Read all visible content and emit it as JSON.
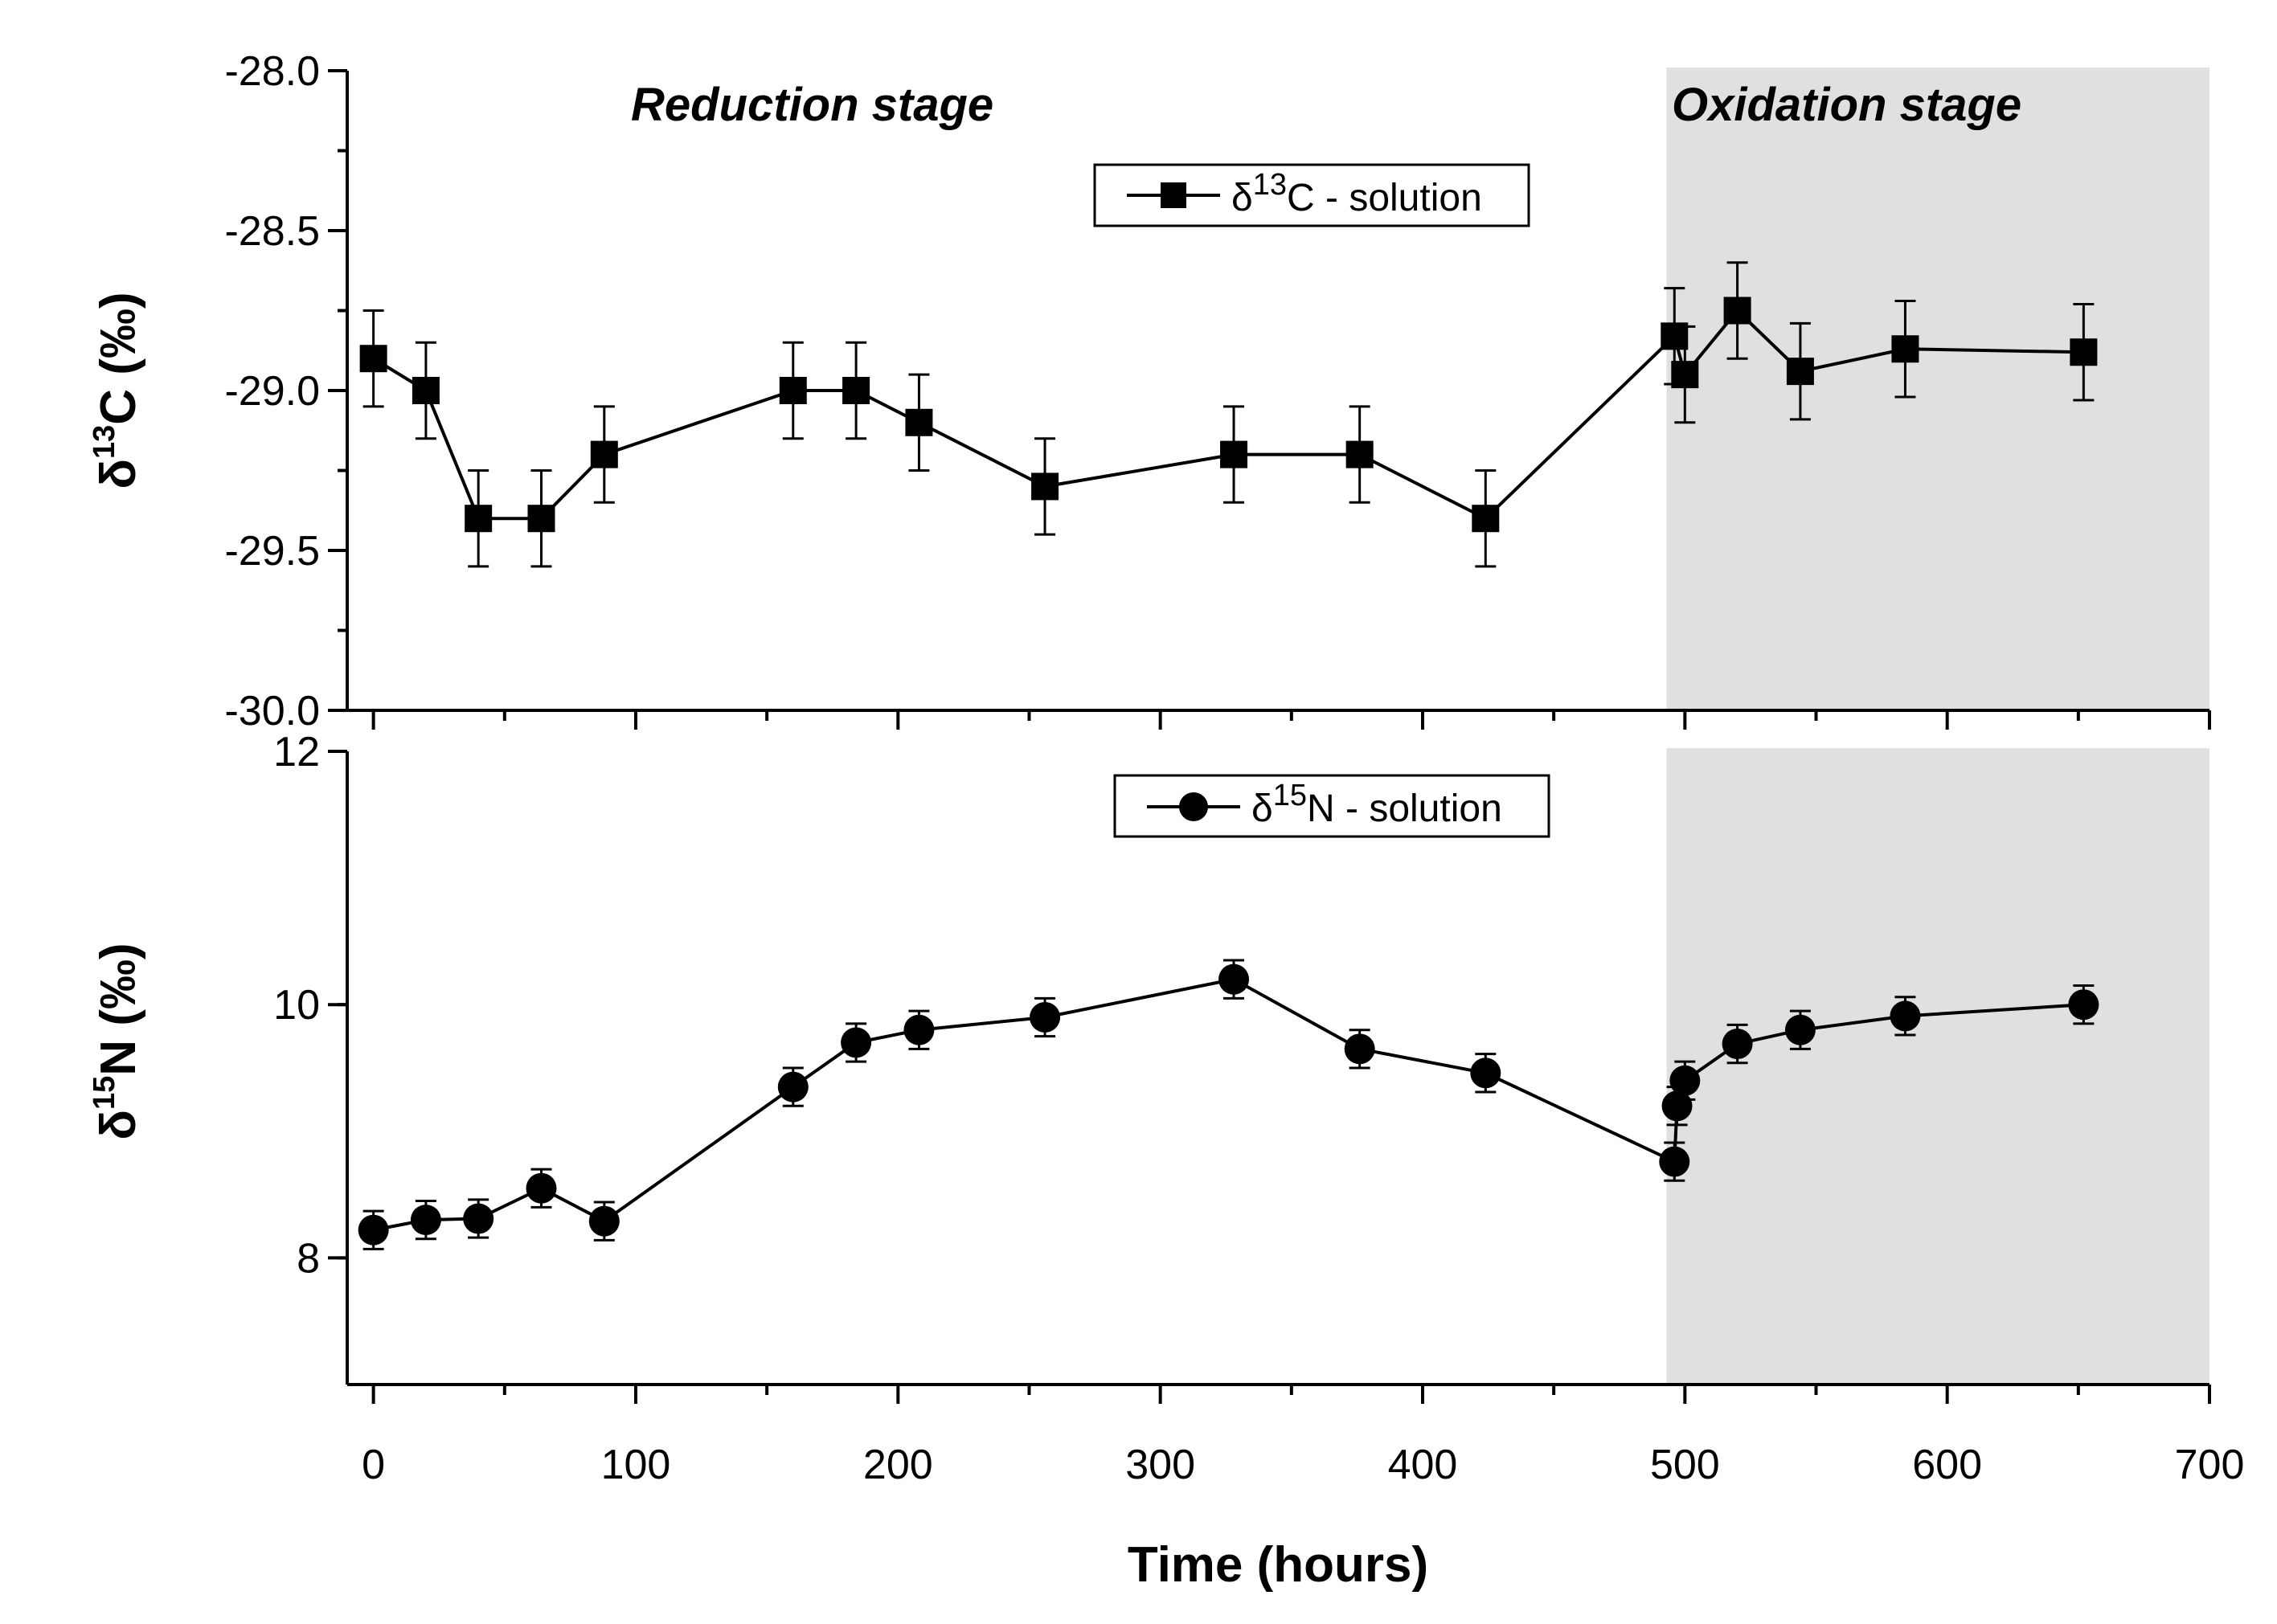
{
  "chart_data": [
    {
      "type": "line",
      "panel": "top",
      "ylabel_prefix": "δ",
      "ylabel_sup": "13",
      "ylabel_suffix": "C (‰)",
      "ylim": [
        -30.0,
        -28.0
      ],
      "yticks": [
        -30.0,
        -29.5,
        -29.0,
        -28.5,
        -28.0
      ],
      "ytick_labels": [
        "-30.0",
        "-29.5",
        "-29.0",
        "-28.5",
        "-28.0"
      ],
      "xlim": [
        -10,
        700
      ],
      "stage_labels": [
        "Reduction stage",
        "Oxidation stage"
      ],
      "shaded_region_x": [
        493,
        700
      ],
      "legend_placement": "top-center",
      "series": [
        {
          "name_prefix": "δ",
          "name_sup": "13",
          "name_suffix": "C - solution",
          "marker": "square",
          "x": [
            0,
            20,
            40,
            64,
            88,
            160,
            184,
            208,
            256,
            328,
            376,
            424,
            496,
            500,
            520,
            544,
            584,
            652
          ],
          "y": [
            -28.9,
            -29.0,
            -29.4,
            -29.4,
            -29.2,
            -29.0,
            -29.0,
            -29.1,
            -29.3,
            -29.2,
            -29.2,
            -29.4,
            -28.83,
            -28.95,
            -28.75,
            -28.94,
            -28.87,
            -28.88
          ],
          "error": [
            0.15,
            0.15,
            0.15,
            0.15,
            0.15,
            0.15,
            0.15,
            0.15,
            0.15,
            0.15,
            0.15,
            0.15,
            0.15,
            0.15,
            0.15,
            0.15,
            0.15,
            0.15
          ]
        }
      ]
    },
    {
      "type": "line",
      "panel": "bottom",
      "ylabel_prefix": "δ",
      "ylabel_sup": "15",
      "ylabel_suffix": "N (‰)",
      "ylim": [
        7,
        12
      ],
      "yticks": [
        8,
        10,
        12
      ],
      "ytick_labels": [
        "8",
        "10",
        "12"
      ],
      "xlim": [
        -10,
        700
      ],
      "xticks": [
        0,
        100,
        200,
        300,
        400,
        500,
        600,
        700
      ],
      "xtick_labels": [
        "0",
        "100",
        "200",
        "300",
        "400",
        "500",
        "600",
        "700"
      ],
      "xlabel": "Time (hours)",
      "shaded_region_x": [
        493,
        700
      ],
      "legend_placement": "top-center",
      "series": [
        {
          "name_prefix": "δ",
          "name_sup": "15",
          "name_suffix": "N - solution",
          "marker": "circle",
          "x": [
            0,
            20,
            40,
            64,
            88,
            160,
            184,
            208,
            256,
            328,
            376,
            424,
            496,
            497,
            500,
            520,
            544,
            584,
            652
          ],
          "y": [
            8.22,
            8.3,
            8.31,
            8.55,
            8.29,
            9.35,
            9.7,
            9.8,
            9.9,
            10.2,
            9.65,
            9.46,
            8.76,
            9.2,
            9.4,
            9.69,
            9.8,
            9.91,
            10.0
          ],
          "error": [
            0.15,
            0.15,
            0.15,
            0.15,
            0.15,
            0.15,
            0.15,
            0.15,
            0.15,
            0.15,
            0.15,
            0.15,
            0.15,
            0.15,
            0.15,
            0.15,
            0.15,
            0.15,
            0.15
          ]
        }
      ]
    }
  ]
}
